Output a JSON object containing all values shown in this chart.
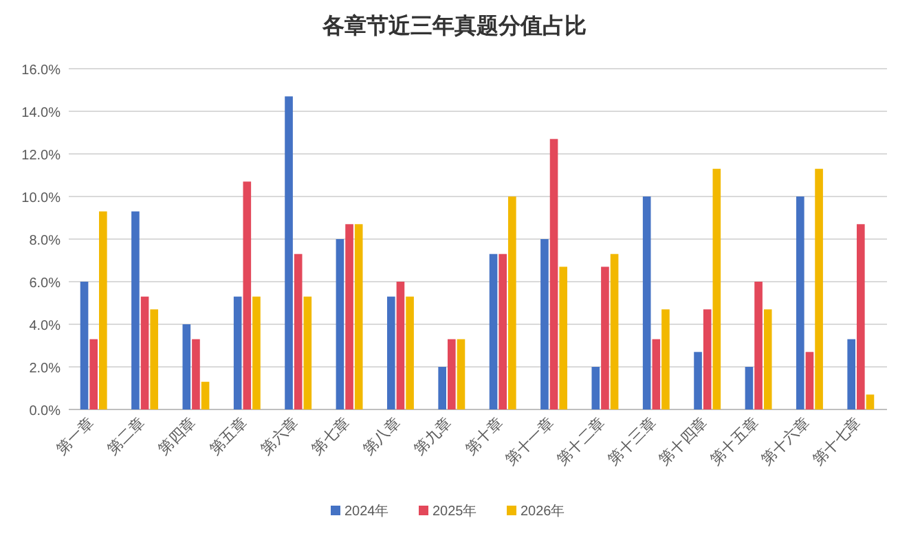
{
  "chart_data": {
    "type": "bar",
    "title": "各章节近三年真题分值占比",
    "categories": [
      "第一章",
      "第二章",
      "第四章",
      "第五章",
      "第六章",
      "第七章",
      "第八章",
      "第九章",
      "第十章",
      "第十一章",
      "第十二章",
      "第十三章",
      "第十四章",
      "第十五章",
      "第十六章",
      "第十七章"
    ],
    "series": [
      {
        "name": "2024年",
        "color": "#4472c4",
        "values": [
          6.0,
          9.3,
          4.0,
          5.3,
          14.7,
          8.0,
          5.3,
          2.0,
          7.3,
          8.0,
          2.0,
          10.0,
          2.7,
          2.0,
          10.0,
          3.3
        ]
      },
      {
        "name": "2025年",
        "color": "#e3485a",
        "values": [
          3.3,
          5.3,
          3.3,
          10.7,
          7.3,
          8.7,
          6.0,
          3.3,
          7.3,
          12.7,
          6.7,
          3.3,
          4.7,
          6.0,
          2.7,
          8.7
        ]
      },
      {
        "name": "2026年",
        "color": "#f2b800",
        "values": [
          9.3,
          4.7,
          1.3,
          5.3,
          5.3,
          8.7,
          5.3,
          3.3,
          10.0,
          6.7,
          7.3,
          4.7,
          11.3,
          4.7,
          11.3,
          0.7
        ]
      }
    ],
    "ylim": [
      0,
      16
    ],
    "yticks": [
      {
        "value": 0,
        "label": "0.0%"
      },
      {
        "value": 2,
        "label": "2.0%"
      },
      {
        "value": 4,
        "label": "4.0%"
      },
      {
        "value": 6,
        "label": "6.0%"
      },
      {
        "value": 8,
        "label": "8.0%"
      },
      {
        "value": 10,
        "label": "10.0%"
      },
      {
        "value": 12,
        "label": "12.0%"
      },
      {
        "value": 14,
        "label": "14.0%"
      },
      {
        "value": 16,
        "label": "16.0%"
      }
    ],
    "grid": "y",
    "legend": "bottom"
  }
}
